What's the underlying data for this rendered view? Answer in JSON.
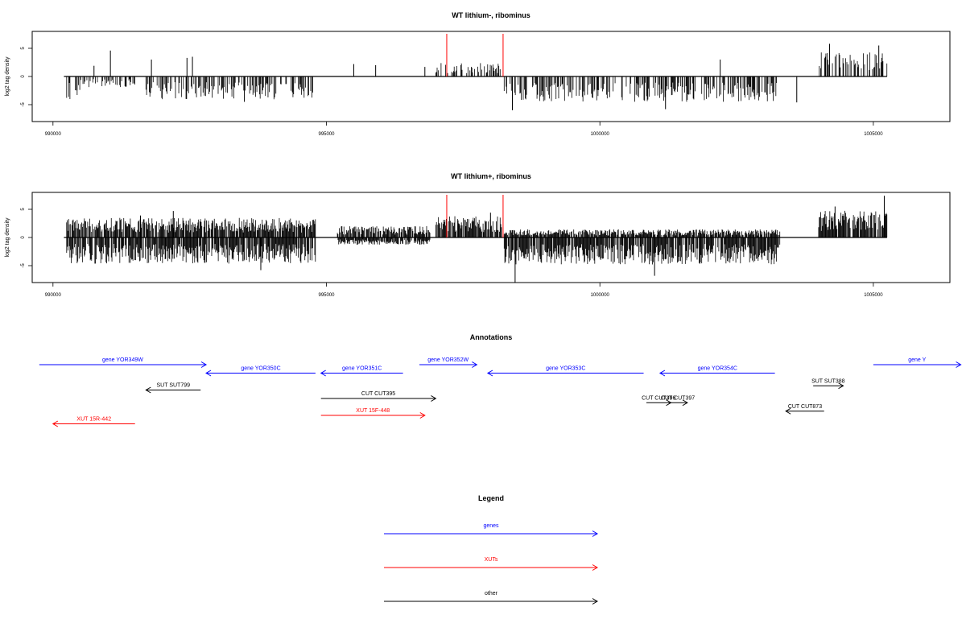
{
  "colors": {
    "genes": "#0000ff",
    "xuts": "#ff0000",
    "other": "#000000",
    "marker": "#ff0000",
    "bars": "#000000"
  },
  "chart_data": [
    {
      "type": "bar",
      "title": "WT lithium-, ribominus",
      "ylabel": "log2 tag density",
      "xlim": [
        989620,
        1006400
      ],
      "ylim": [
        -8,
        8
      ],
      "x_ticks": [
        990000,
        995000,
        1000000,
        1005000
      ],
      "y_ticks": [
        -5,
        0,
        5
      ],
      "baseline_range": [
        990200,
        1005250
      ],
      "markers": [
        997200,
        998230
      ],
      "seed": 7,
      "density": 0.45,
      "segments": [
        {
          "start": 990250,
          "end": 990500,
          "sign": -1,
          "amp": 2.8
        },
        {
          "start": 990500,
          "end": 991500,
          "sign": -1,
          "amp": 1.3
        },
        {
          "start": 991700,
          "end": 994750,
          "sign": -1,
          "amp": 2.8
        },
        {
          "start": 998250,
          "end": 1003300,
          "sign": -1,
          "amp": 3.1
        },
        {
          "start": 1004000,
          "end": 1005250,
          "sign": 1,
          "amp": 3.0
        },
        {
          "start": 997000,
          "end": 998200,
          "sign": 1,
          "amp": 1.7
        }
      ],
      "peaks": [
        {
          "x": 991050,
          "y": 4.6
        },
        {
          "x": 990750,
          "y": 1.9
        },
        {
          "x": 991800,
          "y": 3.0
        },
        {
          "x": 992450,
          "y": 3.3
        },
        {
          "x": 992550,
          "y": 3.5
        },
        {
          "x": 995500,
          "y": 2.2
        },
        {
          "x": 995900,
          "y": 2.0
        },
        {
          "x": 996800,
          "y": 1.7
        },
        {
          "x": 1002200,
          "y": 3.0
        },
        {
          "x": 1004200,
          "y": 5.8
        },
        {
          "x": 1005100,
          "y": 5.5
        },
        {
          "x": 993500,
          "y": -4.5
        },
        {
          "x": 998400,
          "y": -6.0
        },
        {
          "x": 1001200,
          "y": -5.8
        },
        {
          "x": 1003600,
          "y": -4.6
        }
      ]
    },
    {
      "type": "bar",
      "title": "WT lithium+, ribominus",
      "ylabel": "log2 tag density",
      "xlim": [
        989620,
        1006400
      ],
      "ylim": [
        -8,
        8
      ],
      "x_ticks": [
        990000,
        995000,
        1000000,
        1005000
      ],
      "y_ticks": [
        -5,
        0,
        5
      ],
      "baseline_range": [
        990200,
        1005250
      ],
      "markers": [
        997200,
        998230
      ],
      "seed": 13,
      "density": 0.85,
      "segments": [
        {
          "start": 990250,
          "end": 994800,
          "sign": -1,
          "amp": 3.2
        },
        {
          "start": 990250,
          "end": 994800,
          "sign": 1,
          "amp": 2.4
        },
        {
          "start": 995200,
          "end": 996900,
          "sign": 1,
          "amp": 1.4
        },
        {
          "start": 995200,
          "end": 996900,
          "sign": -1,
          "amp": 0.9
        },
        {
          "start": 997000,
          "end": 998200,
          "sign": 1,
          "amp": 2.6
        },
        {
          "start": 998250,
          "end": 1003300,
          "sign": -1,
          "amp": 3.3
        },
        {
          "start": 998250,
          "end": 1003300,
          "sign": 1,
          "amp": 1.0
        },
        {
          "start": 1004000,
          "end": 1005250,
          "sign": 1,
          "amp": 3.3
        }
      ],
      "peaks": [
        {
          "x": 991600,
          "y": 3.9
        },
        {
          "x": 992200,
          "y": 4.7
        },
        {
          "x": 998000,
          "y": 4.4
        },
        {
          "x": 1004300,
          "y": 5.5
        },
        {
          "x": 1005200,
          "y": 7.4
        },
        {
          "x": 998450,
          "y": -8.0
        },
        {
          "x": 993800,
          "y": -5.8
        },
        {
          "x": 1001000,
          "y": -6.8
        }
      ]
    }
  ],
  "annotations": {
    "title": "Annotations",
    "items": [
      {
        "label": "gene YOR349W",
        "x1": 989750,
        "x2": 992800,
        "row": 0,
        "dir": "right",
        "kind": "genes"
      },
      {
        "label": "gene YOR350C",
        "x1": 992800,
        "x2": 994800,
        "row": 1,
        "dir": "left",
        "kind": "genes"
      },
      {
        "label": "gene YOR351C",
        "x1": 994900,
        "x2": 996400,
        "row": 1,
        "dir": "left",
        "kind": "genes"
      },
      {
        "label": "gene YOR352W",
        "x1": 996700,
        "x2": 997750,
        "row": 0,
        "dir": "right",
        "kind": "genes"
      },
      {
        "label": "gene YOR353C",
        "x1": 997950,
        "x2": 1000800,
        "row": 1,
        "dir": "left",
        "kind": "genes"
      },
      {
        "label": "gene YOR354C",
        "x1": 1001100,
        "x2": 1003200,
        "row": 1,
        "dir": "left",
        "kind": "genes"
      },
      {
        "label": "gene Y",
        "x1": 1005000,
        "x2": 1006600,
        "row": 0,
        "dir": "right",
        "kind": "genes"
      },
      {
        "label": "SUT SUT799",
        "x1": 991700,
        "x2": 992700,
        "row": 3,
        "dir": "left",
        "kind": "other"
      },
      {
        "label": "CUT CUT395",
        "x1": 994900,
        "x2": 997000,
        "row": 4,
        "dir": "right",
        "kind": "other"
      },
      {
        "label": "XUT 15F-448",
        "x1": 994900,
        "x2": 996800,
        "row": 6,
        "dir": "right",
        "kind": "xuts"
      },
      {
        "label": "XUT 15R-442",
        "x1": 990000,
        "x2": 991500,
        "row": 7,
        "dir": "left",
        "kind": "xuts"
      },
      {
        "label": "CUT CUT396",
        "x1": 1000850,
        "x2": 1001300,
        "row": 4.5,
        "dir": "right",
        "kind": "other"
      },
      {
        "label": "CUT CUT397",
        "x1": 1001250,
        "x2": 1001600,
        "row": 4.5,
        "dir": "right",
        "kind": "other"
      },
      {
        "label": "CUT CUT873",
        "x1": 1003400,
        "x2": 1004100,
        "row": 5.5,
        "dir": "left",
        "kind": "other"
      },
      {
        "label": "SUT SUT388",
        "x1": 1003900,
        "x2": 1004450,
        "row": 2.5,
        "dir": "right",
        "kind": "other"
      }
    ]
  },
  "legend": {
    "title": "Legend",
    "items": [
      {
        "label": "genes",
        "kind": "genes"
      },
      {
        "label": "XUTs",
        "kind": "xuts"
      },
      {
        "label": "other",
        "kind": "other"
      }
    ]
  }
}
